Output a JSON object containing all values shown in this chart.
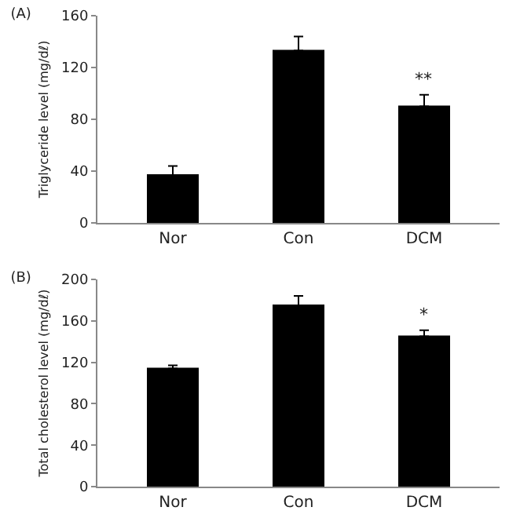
{
  "chart_data": [
    {
      "type": "bar",
      "title": "(A)",
      "ylabel": "Triglyceride level (mg/dℓ)",
      "categories": [
        "Nor",
        "Con",
        "DCM"
      ],
      "values": [
        37,
        133,
        90
      ],
      "errors": [
        7,
        11,
        9
      ],
      "color": "#000000",
      "ylim": [
        0,
        160
      ],
      "yticks": [
        0,
        40,
        80,
        120,
        160
      ],
      "grid": false,
      "annotations": [
        {
          "text": "**",
          "x": "DCM",
          "y": 101
        }
      ]
    },
    {
      "type": "bar",
      "title": "(B)",
      "ylabel": "Total cholesterol level (mg/dℓ)",
      "categories": [
        "Nor",
        "Con",
        "DCM"
      ],
      "values": [
        114,
        175,
        145
      ],
      "errors": [
        3,
        9,
        6
      ],
      "color": "#000000",
      "ylim": [
        0,
        200
      ],
      "yticks": [
        0,
        40,
        80,
        120,
        160,
        200
      ],
      "grid": false,
      "annotations": [
        {
          "text": "*",
          "x": "DCM",
          "y": 153
        }
      ]
    }
  ]
}
